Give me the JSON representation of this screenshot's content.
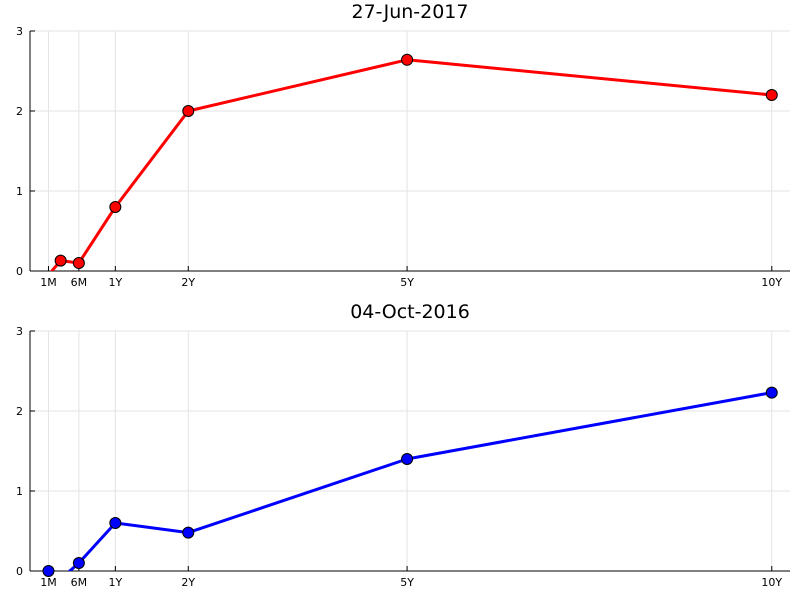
{
  "chart_data": [
    {
      "type": "line",
      "title": "27-Jun-2017",
      "xlabel": "",
      "ylabel": "",
      "x": [
        0.0833,
        0.25,
        0.5,
        1,
        2,
        5,
        10
      ],
      "xticks": [
        {
          "value": 0.0833,
          "label": "1M"
        },
        {
          "value": 0.5,
          "label": "6M"
        },
        {
          "value": 1,
          "label": "1Y"
        },
        {
          "value": 2,
          "label": "2Y"
        },
        {
          "value": 5,
          "label": "5Y"
        },
        {
          "value": 10,
          "label": "10Y"
        }
      ],
      "xlim": [
        -0.17,
        10.25
      ],
      "ylim": [
        0,
        3
      ],
      "yticks": [
        0,
        1,
        2,
        3
      ],
      "grid": true,
      "legend": "none",
      "series": [
        {
          "color": "#ff0000",
          "values": [
            -0.05,
            0.13,
            0.1,
            0.8,
            2.0,
            2.64,
            2.2
          ],
          "markers": [
            false,
            true,
            true,
            true,
            true,
            true,
            true
          ]
        }
      ]
    },
    {
      "type": "line",
      "title": "04-Oct-2016",
      "xlabel": "",
      "ylabel": "",
      "x": [
        0.0833,
        0.25,
        0.5,
        1,
        2,
        5,
        10
      ],
      "xticks": [
        {
          "value": 0.0833,
          "label": "1M"
        },
        {
          "value": 0.5,
          "label": "6M"
        },
        {
          "value": 1,
          "label": "1Y"
        },
        {
          "value": 2,
          "label": "2Y"
        },
        {
          "value": 5,
          "label": "5Y"
        },
        {
          "value": 10,
          "label": "10Y"
        }
      ],
      "xlim": [
        -0.17,
        10.25
      ],
      "ylim": [
        0,
        3
      ],
      "yticks": [
        0,
        1,
        2,
        3
      ],
      "grid": true,
      "legend": "none",
      "series": [
        {
          "color": "#0000ff",
          "values": [
            0.0,
            -0.1,
            0.1,
            0.6,
            0.48,
            1.4,
            2.23
          ],
          "markers": [
            true,
            false,
            true,
            true,
            true,
            true,
            true
          ]
        }
      ]
    }
  ]
}
